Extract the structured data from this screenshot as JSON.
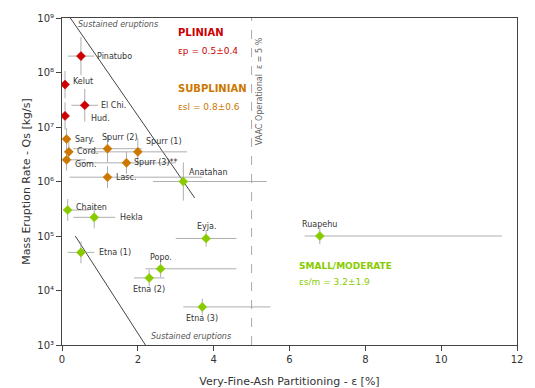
{
  "chart_data": {
    "type": "scatter",
    "xlabel": "Very-Fine-Ash Partitioning - ε [%]",
    "ylabel": "Mass Eruption Rate - Qs [kg/s]",
    "log": "y",
    "xlim": [
      0,
      12
    ],
    "ylim": [
      1000,
      1000000000
    ],
    "xticks": [
      0,
      2,
      4,
      6,
      8,
      10,
      12
    ],
    "yticks": [
      {
        "value": 1000,
        "label": "10³"
      },
      {
        "value": 10000,
        "label": "10⁴"
      },
      {
        "value": 100000,
        "label": "10⁵"
      },
      {
        "value": 1000000,
        "label": "10⁶"
      },
      {
        "value": 10000000,
        "label": "10⁷"
      },
      {
        "value": 100000000,
        "label": "10⁸"
      },
      {
        "value": 1000000000,
        "label": "10⁹"
      }
    ],
    "grid": false,
    "marker": "diamond",
    "labels": [
      "Pinatubo",
      "Kelut",
      "El Chi.",
      "Hud.",
      "Sary.",
      "Cord.",
      "Gom.",
      "Spurr (2)",
      "Spurr (1)",
      "Spurr (3)**",
      "Lasc.",
      "Anatahan",
      "Chaiten",
      "Hekla",
      "Eyja.",
      "Ruapehu",
      "Etna (1)",
      "Popo.",
      "Etna (2)",
      "Etna (3)"
    ],
    "x": [
      0.5,
      0.08,
      0.6,
      0.08,
      0.12,
      0.18,
      0.12,
      1.2,
      2.0,
      1.7,
      1.2,
      3.2,
      0.15,
      0.85,
      3.8,
      6.8,
      0.5,
      2.6,
      2.3,
      3.7
    ],
    "values": [
      200000000,
      60000000,
      25000000,
      16000000,
      6000000,
      3500000,
      2500000,
      4000000,
      3500000,
      2200000,
      1200000,
      1000000,
      300000,
      220000,
      90000,
      100000,
      50000,
      25000,
      17000,
      5000
    ],
    "colors": [
      "#cc0000",
      "#cc0000",
      "#cc0000",
      "#cc0000",
      "#cc7700",
      "#cc7700",
      "#cc7700",
      "#cc7700",
      "#cc7700",
      "#cc7700",
      "#cc7700",
      "#88cc00",
      "#88cc00",
      "#88cc00",
      "#88cc00",
      "#88cc00",
      "#88cc00",
      "#88cc00",
      "#88cc00",
      "#88cc00"
    ],
    "xerr_minus": [
      0.35,
      0.06,
      0.35,
      0.06,
      0.08,
      0.12,
      0.1,
      0.9,
      1.3,
      1.3,
      1.0,
      0.8,
      0.12,
      0.55,
      0.8,
      0.4,
      0.35,
      0.4,
      0.4,
      0.5
    ],
    "xerr_plus": [
      0.35,
      0.06,
      0.35,
      0.06,
      0.08,
      0.12,
      0.5,
      0.9,
      1.3,
      1.3,
      2.5,
      2.2,
      0.55,
      0.55,
      0.8,
      4.8,
      0.35,
      2.0,
      0.4,
      1.8
    ],
    "yerr_minus": [
      110663200,
      26259540,
      12470325,
      7002544,
      2214258,
      1291650.5,
      922607.5,
      1750636,
      1531806.5,
      811894.6,
      442851.6,
      553316,
      110712.9,
      81189.46,
      26284.86,
      29205.4,
      18452.15,
      7301.35,
      4964.918,
      1460.27
    ],
    "yerr_plus": [
      247744200,
      46696740,
      24881550,
      12452464,
      3509358,
      2047125.5,
      1462232.5,
      3113116,
      2723976.5,
      1286764.6,
      701871.6,
      1238721,
      175467.9,
      128676.46,
      37128.42,
      41253.8,
      29244.65,
      10313.45,
      7013.146,
      2062.69
    ],
    "lines": [
      {
        "x": [
          0.22,
          3.5
        ],
        "values": [
          1000000000,
          500000
        ],
        "color": "#444444",
        "label": "Sustained eruptions"
      },
      {
        "x": [
          0.35,
          2.2
        ],
        "values": [
          100000,
          1000
        ],
        "color": "#444444",
        "label": "Sustained eruptions"
      }
    ],
    "vline": {
      "x": 5.0,
      "label": "VAAC Operational  ε = 5 %",
      "color": "#aaaaaa",
      "line_style": "dashed"
    },
    "annotations": [
      {
        "text": "PLINIAN",
        "color": "#cc0000"
      },
      {
        "text": "εp = 0.5±0.4",
        "color": "#cc0000"
      },
      {
        "text": "SUBPLINIAN",
        "color": "#cc7700"
      },
      {
        "text": "εsl = 0.8±0.6",
        "color": "#cc7700"
      },
      {
        "text": "SMALL/MODERATE",
        "color": "#88cc00"
      },
      {
        "text": "εs/m = 3.2±1.9",
        "color": "#88cc00"
      }
    ]
  }
}
